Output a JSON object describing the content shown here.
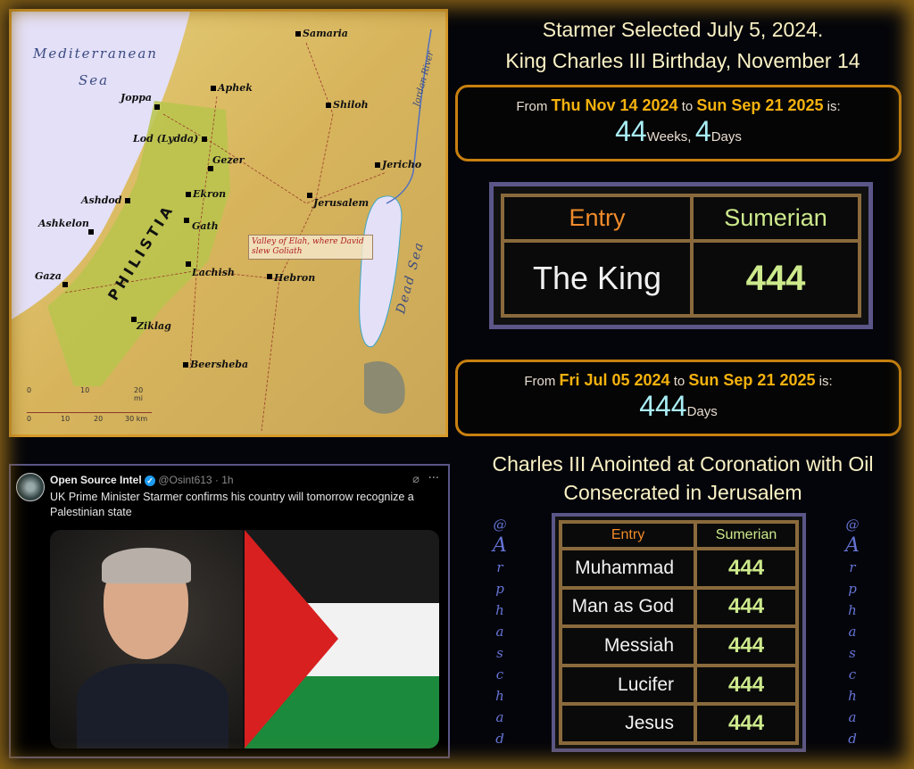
{
  "map": {
    "seas": [
      "Mediterranean",
      "Sea",
      "Dead Sea",
      "Jordan River"
    ],
    "region": "PHILISTIA",
    "cities": [
      "Samaria",
      "Aphek",
      "Shiloh",
      "Joppa",
      "Lod (Lydda)",
      "Gezer",
      "Jericho",
      "Ekron",
      "Jerusalem",
      "Ashdod",
      "Gath",
      "Ashkelon",
      "Lachish",
      "Hebron",
      "Gaza",
      "Ziklag",
      "Beersheba"
    ],
    "callout": "Valley of Elah, where David slew Goliath",
    "scale_mi": [
      "0",
      "10",
      "20 mi"
    ],
    "scale_km": [
      "0",
      "10",
      "20",
      "30 km"
    ]
  },
  "tweet": {
    "name": "Open Source Intel",
    "handle": "@Osint613 · 1h",
    "text": "UK Prime Minister Starmer confirms his country will tomorrow recognize a Palestinian state",
    "more": "···",
    "verified_color": "#1d9bf0"
  },
  "header": {
    "line1": "Starmer Selected July 5, 2024.",
    "line2": "King Charles III Birthday, November 14"
  },
  "box1": {
    "from": "From",
    "d1": "Thu Nov 14 2024",
    "to": "to",
    "d2": "Sun Sep 21 2025",
    "is": "is:",
    "weeks": "44",
    "weeks_label": "Weeks,",
    "days": "4",
    "days_label": "Days"
  },
  "table1": {
    "h_entry": "Entry",
    "h_sum": "Sumerian",
    "entry": "The King",
    "value": "444"
  },
  "box2": {
    "from": "From",
    "d1": "Fri Jul 05 2024",
    "to": "to",
    "d2": "Sun Sep 21 2025",
    "is": "is:",
    "days": "444",
    "days_label": "Days"
  },
  "header2": {
    "line1": "Charles III Anointed at Coronation with Oil",
    "line2": "Consecrated in Jerusalem"
  },
  "table2": {
    "h_entry": "Entry",
    "h_sum": "Sumerian",
    "rows": [
      {
        "entry": "Muhammad",
        "value": "444"
      },
      {
        "entry": "Man as God",
        "value": "444"
      },
      {
        "entry": "Messiah",
        "value": "444"
      },
      {
        "entry": "Lucifer",
        "value": "444"
      },
      {
        "entry": "Jesus",
        "value": "444"
      }
    ]
  },
  "watermark": [
    "@",
    "A",
    "r",
    "p",
    "h",
    "a",
    "s",
    "c",
    "h",
    "a",
    "d"
  ]
}
